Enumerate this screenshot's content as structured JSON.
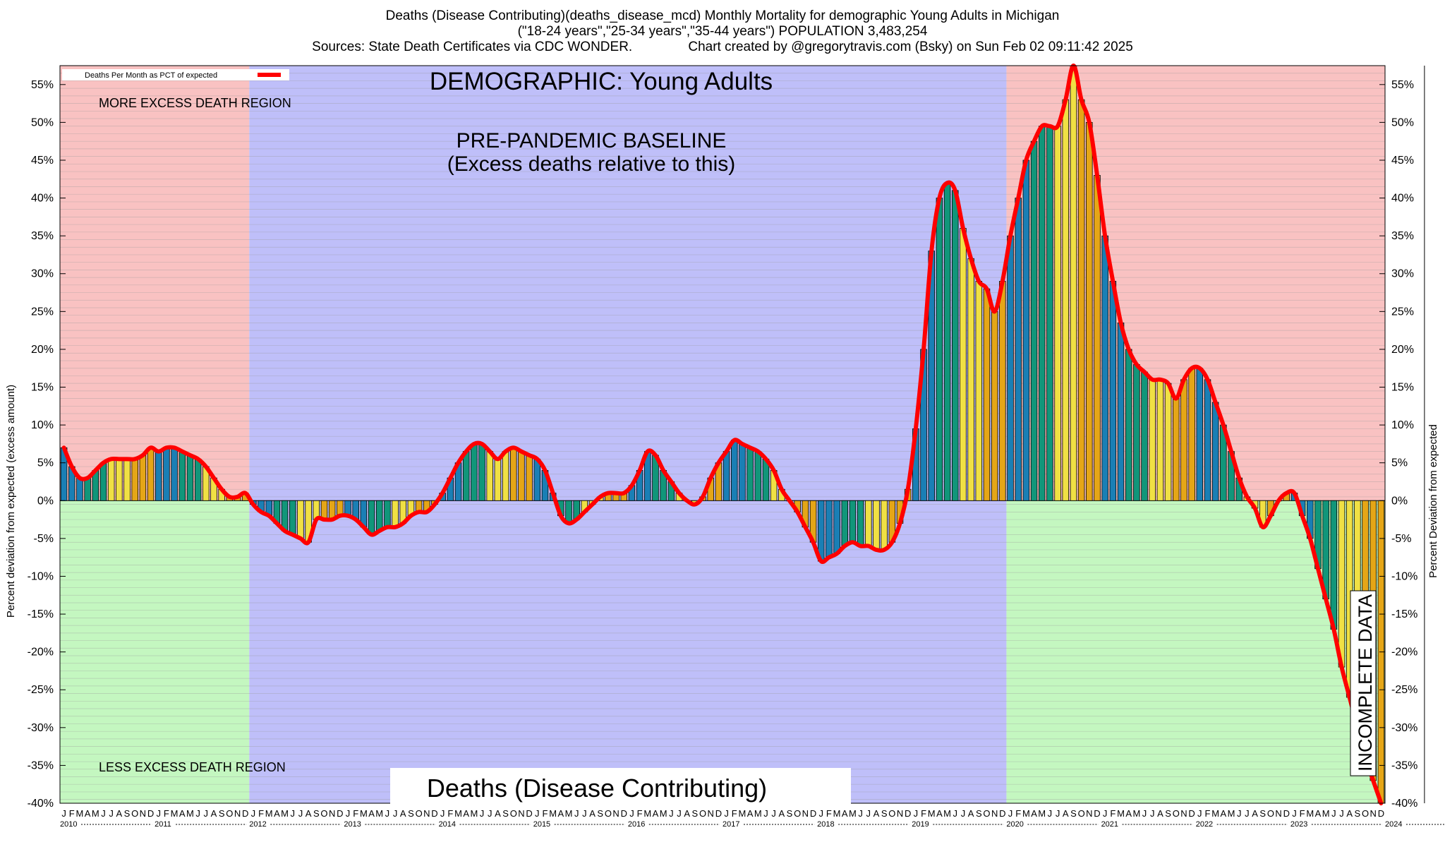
{
  "header": {
    "line1": "Deaths (Disease Contributing)(deaths_disease_mcd) Monthly Mortality for demographic Young Adults in Michigan",
    "line2": "(\"18-24 years\",\"25-34 years\",\"35-44 years\") POPULATION 3,483,254",
    "line3": "Sources: State Death Certificates via CDC WONDER.               Chart created by @gregorytravis.com (Bsky) on Sun Feb 02 09:11:42 2025"
  },
  "labels": {
    "legend": "Deaths Per Month as PCT of expected",
    "demographic": "DEMOGRAPHIC: Young Adults",
    "baseline1": "PRE-PANDEMIC BASELINE",
    "baseline2": "(Excess deaths relative to this)",
    "more_region": "MORE EXCESS DEATH REGION",
    "less_region": "LESS EXCESS DEATH REGION",
    "metric": "Deaths (Disease Contributing)",
    "incomplete": "INCOMPLETE DATA",
    "ylabel_left": "Percent deviation from expected (excess amount)",
    "ylabel_right": "Percent Deviation from expected"
  },
  "colors": {
    "more_region": "#f9c2c2",
    "less_region": "#c4f7c0",
    "baseline_region": "#bfbff9",
    "line": "#ff0000",
    "bars": [
      "#1a7fb5",
      "#11967a",
      "#f0e044",
      "#e5a617"
    ]
  },
  "chart_data": {
    "type": "bar",
    "title": "Deaths (Disease Contributing)(deaths_disease_mcd) Monthly Mortality for demographic Young Adults in Michigan",
    "ylabel": "Percent deviation from expected (excess amount)",
    "y2label": "Percent Deviation from expected",
    "ylim": [
      -40,
      57.5
    ],
    "grid": true,
    "legend_position": "top-left",
    "start": "2010-01",
    "month_letters": [
      "J",
      "F",
      "M",
      "A",
      "M",
      "J",
      "J",
      "A",
      "S",
      "O",
      "N",
      "D"
    ],
    "years": [
      "2010",
      "2011",
      "2012",
      "2013",
      "2014",
      "2015",
      "2016",
      "2017",
      "2018",
      "2019",
      "2020",
      "2021",
      "2022",
      "2023",
      "2024"
    ],
    "yticks": [
      {
        "v": 55,
        "label": "55%"
      },
      {
        "v": 50,
        "label": "50%"
      },
      {
        "v": 45,
        "label": "45%"
      },
      {
        "v": 40,
        "label": "40%"
      },
      {
        "v": 35,
        "label": "35%"
      },
      {
        "v": 30,
        "label": "30%"
      },
      {
        "v": 25,
        "label": "25%"
      },
      {
        "v": 20,
        "label": "20%"
      },
      {
        "v": 15,
        "label": "15%"
      },
      {
        "v": 10,
        "label": "10%"
      },
      {
        "v": 5,
        "label": "5%"
      },
      {
        "v": 0,
        "label": "0%"
      },
      {
        "v": -5,
        "label": "-5%"
      },
      {
        "v": -10,
        "label": "-10%"
      },
      {
        "v": -15,
        "label": "-15%"
      },
      {
        "v": -20,
        "label": "-20%"
      },
      {
        "v": -25,
        "label": "-25%"
      },
      {
        "v": -30,
        "label": "-30%"
      },
      {
        "v": -35,
        "label": "-35%"
      },
      {
        "v": -40,
        "label": "-40%"
      }
    ],
    "baseline_period": [
      "2012-01",
      "2019-12"
    ],
    "incomplete_from": "2024-06",
    "series": [
      {
        "name": "Deaths Per Month as PCT of expected",
        "values": [
          7,
          4.5,
          3,
          3,
          4,
          5,
          5.5,
          5.5,
          5.5,
          5.5,
          6,
          7,
          6.5,
          7,
          7,
          6.5,
          6,
          5.5,
          4.5,
          3,
          1.5,
          0.5,
          0.5,
          1,
          -0.5,
          -1.5,
          -2,
          -3,
          -4,
          -4.5,
          -5,
          -5.5,
          -2.5,
          -2.5,
          -2.5,
          -2,
          -2,
          -2.5,
          -3.5,
          -4.5,
          -4,
          -3.5,
          -3.5,
          -3,
          -2,
          -1.5,
          -1.5,
          -0.5,
          1,
          3,
          5,
          6.5,
          7.5,
          7.5,
          6.5,
          5.5,
          6.5,
          7,
          6.5,
          6,
          5.5,
          4,
          1,
          -2,
          -3,
          -2.5,
          -1.5,
          -0.5,
          0.5,
          1,
          1,
          1,
          2,
          4,
          6.5,
          6,
          4,
          2.5,
          1,
          0,
          -0.5,
          0.5,
          3,
          5,
          6.5,
          8,
          7.5,
          7,
          6.5,
          5.5,
          4,
          1.5,
          0,
          -1.5,
          -3.5,
          -5.5,
          -8,
          -7.5,
          -7,
          -6,
          -5.5,
          -6,
          -6,
          -6.5,
          -6.5,
          -5.5,
          -3,
          1.5,
          9.5,
          20,
          33,
          40,
          42,
          41,
          36,
          32,
          29,
          28,
          25,
          29,
          35,
          40,
          45,
          47.5,
          49.5,
          49.5,
          49.5,
          53,
          57.5,
          53,
          50,
          43,
          35,
          29,
          23.5,
          20,
          18,
          17,
          16,
          16,
          15.5,
          13.5,
          16,
          17.5,
          17.5,
          16,
          13,
          10,
          6.5,
          3,
          0.5,
          -1,
          -3.5,
          -2,
          0,
          1,
          1,
          -2,
          -5,
          -9,
          -13,
          -17,
          -22,
          -26,
          -30,
          -34,
          -37,
          -40
        ]
      }
    ]
  }
}
